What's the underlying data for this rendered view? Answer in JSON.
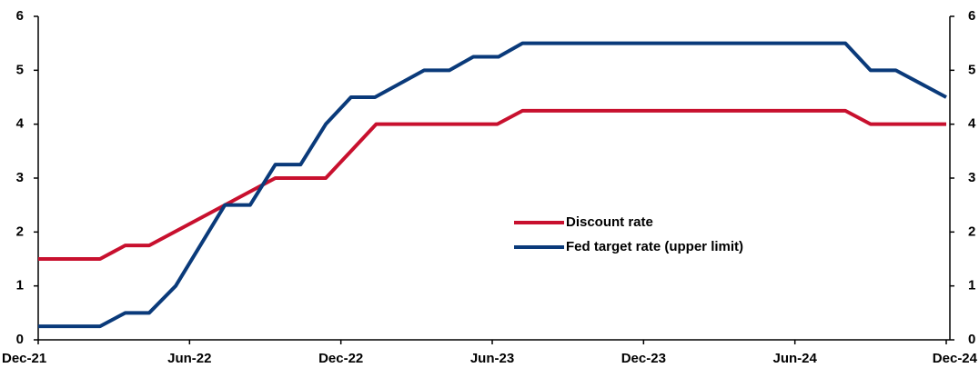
{
  "chart_data": {
    "type": "line",
    "series": [
      {
        "name": "Discount rate",
        "color": "#c8102e",
        "x": [
          0,
          2.45,
          3.45,
          4.4,
          9.4,
          11.4,
          13.4,
          18.2,
          19.2,
          32,
          33,
          36
        ],
        "values": [
          1.5,
          1.5,
          1.75,
          1.75,
          3,
          3,
          4,
          4,
          4.25,
          4.25,
          4,
          4
        ]
      },
      {
        "name": "Fed target rate (upper limit)",
        "color": "#0a3a7a",
        "x": [
          0,
          2.45,
          3.45,
          4.4,
          5.45,
          7.4,
          8.4,
          9.4,
          10.4,
          11.4,
          12.4,
          13.35,
          15.3,
          16.3,
          17.25,
          18.25,
          19.2,
          32,
          33,
          34,
          36
        ],
        "values": [
          0.25,
          0.25,
          0.5,
          0.5,
          1,
          2.5,
          2.5,
          3.25,
          3.25,
          4,
          4.5,
          4.5,
          5,
          5,
          5.25,
          5.25,
          5.5,
          5.5,
          5,
          5,
          4.5
        ]
      }
    ],
    "xlim": [
      0,
      36
    ],
    "xticks": [
      {
        "value": 0,
        "label": "Dec-21"
      },
      {
        "value": 6,
        "label": "Jun-22"
      },
      {
        "value": 12,
        "label": "Dec-22"
      },
      {
        "value": 18,
        "label": "Jun-23"
      },
      {
        "value": 24,
        "label": "Dec-23"
      },
      {
        "value": 30,
        "label": "Jun-24"
      },
      {
        "value": 36,
        "label": "Dec-24"
      }
    ],
    "ylim": [
      0,
      6
    ],
    "yticks": [
      0,
      1,
      2,
      3,
      4,
      5,
      6
    ],
    "y2lim": [
      0,
      6
    ],
    "y2ticks": [
      0,
      1,
      2,
      3,
      4,
      5,
      6
    ],
    "legend": "center"
  }
}
